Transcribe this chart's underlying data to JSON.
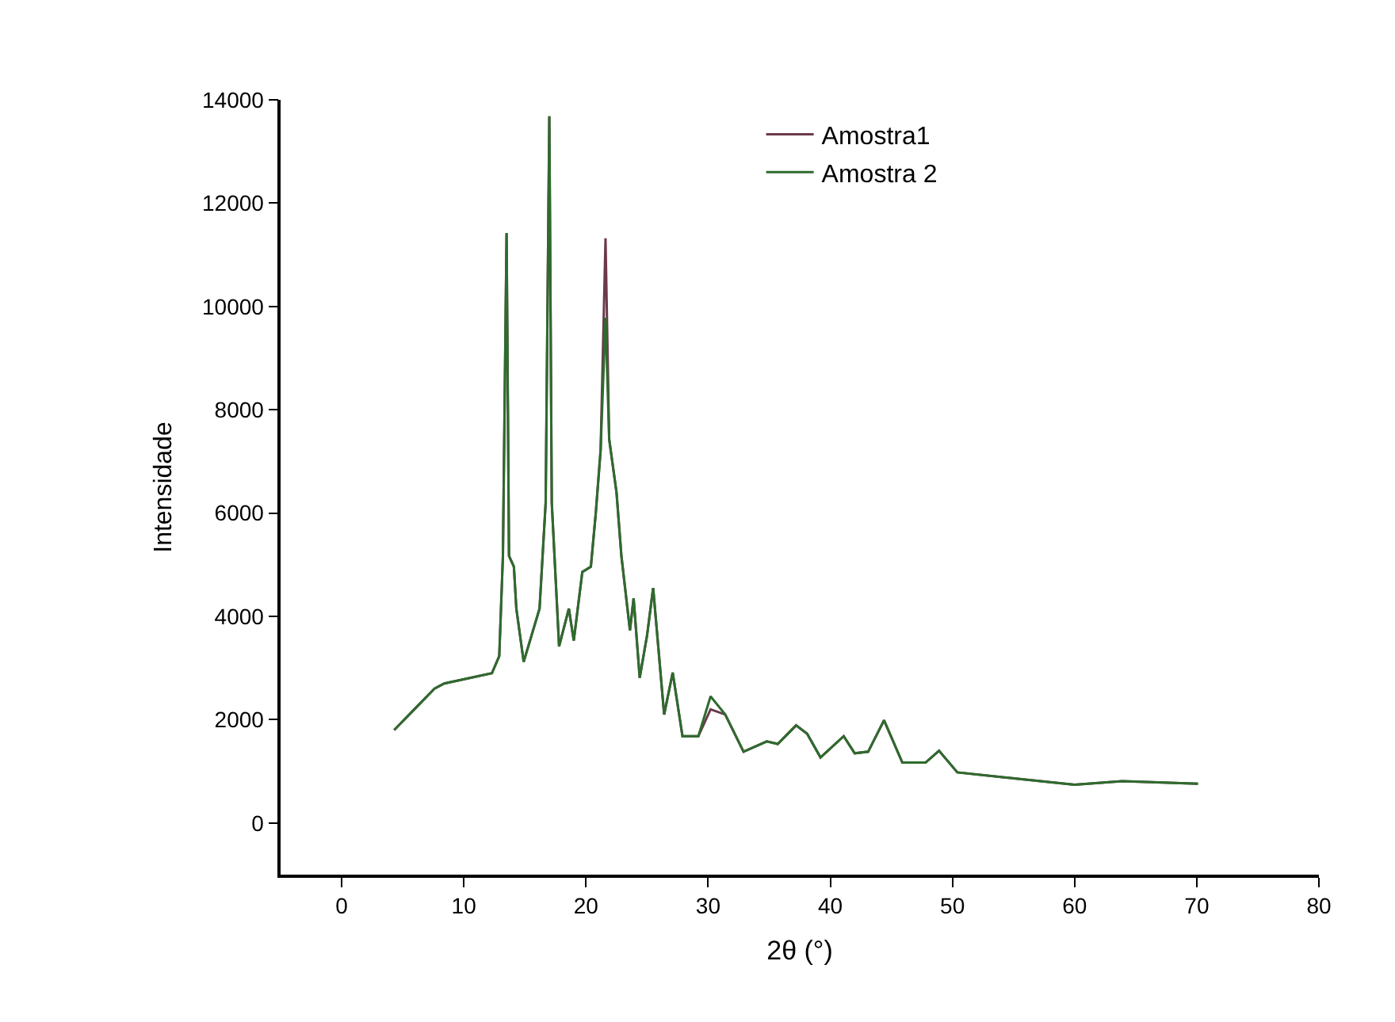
{
  "chart_data": {
    "type": "line",
    "xlabel": "2θ (°)",
    "ylabel": "Intensidade",
    "xlim": [
      -5,
      80
    ],
    "xticks": [
      0,
      10,
      20,
      30,
      40,
      50,
      60,
      70,
      80
    ],
    "ylim": [
      -1000,
      14000
    ],
    "yticks": [
      0,
      2000,
      4000,
      6000,
      8000,
      10000,
      12000,
      14000
    ],
    "legend": "top right",
    "marker": "none",
    "line_style": "solid",
    "x": [
      4.3,
      7.6,
      8.4,
      12.3,
      12.9,
      13.2,
      13.5,
      13.7,
      14.1,
      14.3,
      14.9,
      16.2,
      16.7,
      17.0,
      17.2,
      17.8,
      18.6,
      19.0,
      19.7,
      20.4,
      20.8,
      21.2,
      21.6,
      21.9,
      22.5,
      22.9,
      23.6,
      23.9,
      24.4,
      25.0,
      25.5,
      26.4,
      27.1,
      27.9,
      29.2,
      30.2,
      31.4,
      32.9,
      34.8,
      35.7,
      37.2,
      38.1,
      39.2,
      41.1,
      42.0,
      43.1,
      44.4,
      45.9,
      47.8,
      48.9,
      50.4,
      55.2,
      60.0,
      63.9,
      70.1
    ],
    "series": [
      {
        "name": "Amostra1",
        "color": "#6b3a4a",
        "values": [
          1800,
          2600,
          2700,
          2900,
          3230,
          5170,
          11420,
          5170,
          4960,
          4150,
          3120,
          4150,
          6200,
          13680,
          6200,
          3420,
          4150,
          3530,
          4860,
          4960,
          5990,
          7220,
          11320,
          7430,
          6400,
          5170,
          3730,
          4350,
          2810,
          3630,
          4550,
          2100,
          2910,
          1680,
          1680,
          2200,
          2100,
          1380,
          1580,
          1530,
          1890,
          1730,
          1270,
          1680,
          1350,
          1380,
          1990,
          1170,
          1170,
          1400,
          980,
          860,
          740,
          810,
          760
        ]
      },
      {
        "name": "Amostra 2",
        "color": "#2e6b2e",
        "values": [
          1800,
          2600,
          2700,
          2900,
          3230,
          5170,
          11420,
          5170,
          4960,
          4150,
          3120,
          4150,
          6200,
          13680,
          6200,
          3420,
          4150,
          3530,
          4860,
          4960,
          5990,
          7220,
          9780,
          7430,
          6400,
          5170,
          3730,
          4350,
          2810,
          3630,
          4550,
          2100,
          2910,
          1680,
          1680,
          2450,
          2100,
          1380,
          1580,
          1530,
          1890,
          1730,
          1270,
          1680,
          1350,
          1380,
          1990,
          1170,
          1170,
          1400,
          980,
          860,
          740,
          810,
          760
        ]
      }
    ]
  }
}
